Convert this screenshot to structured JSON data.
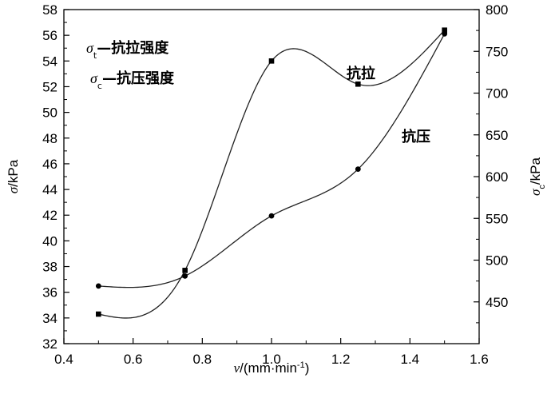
{
  "chart_data": {
    "type": "line",
    "x_axis": {
      "var": "v",
      "unit": "/(mm·min",
      "unit_sup": "-1",
      "unit_close": ")",
      "range": [
        0.4,
        1.6
      ],
      "ticks": [
        0.4,
        0.6,
        0.8,
        1.0,
        1.2,
        1.4,
        1.6
      ],
      "tick_labels": [
        "0.4",
        "0.6",
        "0.8",
        "1.0",
        "1.2",
        "1.4",
        "1.6"
      ]
    },
    "y_left_axis": {
      "var": "σ",
      "unit": "/kPa",
      "range": [
        32,
        58
      ],
      "ticks": [
        32,
        34,
        36,
        38,
        40,
        42,
        44,
        46,
        48,
        50,
        52,
        54,
        56,
        58
      ],
      "tick_labels": [
        "32",
        "34",
        "36",
        "38",
        "40",
        "42",
        "44",
        "46",
        "48",
        "50",
        "52",
        "54",
        "56",
        "58"
      ]
    },
    "y_right_axis": {
      "var": "σ",
      "sub": "c",
      "unit": "/kPa",
      "range": [
        400,
        800
      ],
      "ticks": [
        450,
        500,
        550,
        600,
        650,
        700,
        750,
        800
      ],
      "tick_labels": [
        "450",
        "500",
        "550",
        "600",
        "650",
        "700",
        "750",
        "800"
      ]
    },
    "series": [
      {
        "name": "抗拉",
        "axis": "left",
        "marker": "square",
        "x": [
          0.5,
          0.75,
          1.0,
          1.25,
          1.5
        ],
        "y": [
          34.3,
          37.7,
          54.0,
          52.2,
          56.4
        ]
      },
      {
        "name": "抗压",
        "axis": "right",
        "marker": "circle",
        "x": [
          0.5,
          0.75,
          1.0,
          1.25,
          1.5
        ],
        "y": [
          469,
          481,
          553,
          609,
          771
        ]
      }
    ],
    "legend": [
      {
        "symbol": "σ",
        "sub": "t",
        "text": "—抗拉强度"
      },
      {
        "symbol": "σ",
        "sub": "c",
        "text": "—抗压强度"
      }
    ],
    "grid": false,
    "legend_position": "top-left"
  }
}
